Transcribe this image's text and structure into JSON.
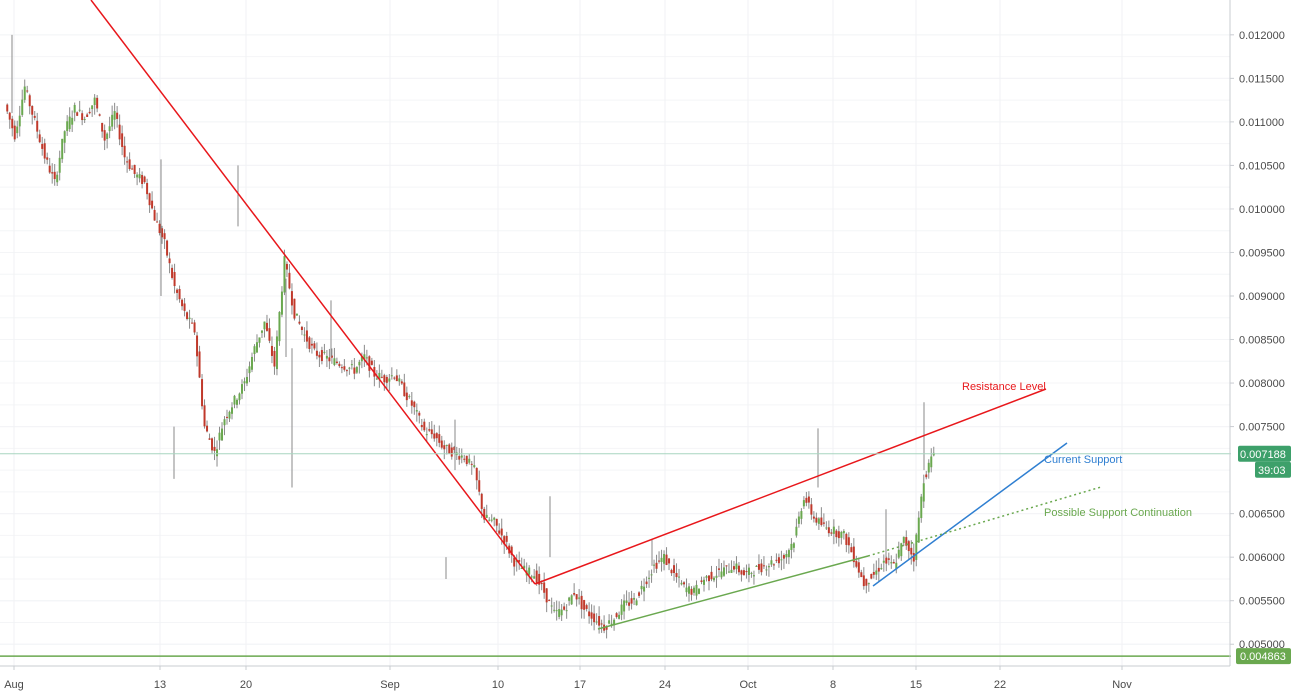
{
  "chart_data": {
    "type": "candlestick",
    "title": "",
    "xlabel": "",
    "ylabel": "",
    "x_ticks": [
      "Aug",
      "13",
      "20",
      "Sep",
      "10",
      "17",
      "24",
      "Oct",
      "8",
      "15",
      "22",
      "Nov"
    ],
    "y_ticks": [
      "0.012000",
      "0.011500",
      "0.011000",
      "0.010500",
      "0.010000",
      "0.009500",
      "0.009000",
      "0.008500",
      "0.008000",
      "0.007500",
      "0.006500",
      "0.006000",
      "0.005500",
      "0.005000"
    ],
    "ylim": [
      0.00475,
      0.0124
    ],
    "grid": true,
    "current_price": "0.007188",
    "countdown": "39:03",
    "horizontal_level_label": "0.004863",
    "horizontal_level": 0.004863,
    "series": [
      {
        "values": [
          [
            0,
            0.0112
          ],
          [
            1,
            0.01085
          ],
          [
            2,
            0.0114
          ],
          [
            3,
            0.011
          ],
          [
            4,
            0.0106
          ],
          [
            5,
            0.0103
          ],
          [
            6,
            0.0109
          ],
          [
            7,
            0.01115
          ],
          [
            8,
            0.01105
          ],
          [
            9,
            0.01125
          ],
          [
            10,
            0.0108
          ],
          [
            11,
            0.0111
          ],
          [
            12,
            0.0106
          ],
          [
            13,
            0.0104
          ],
          [
            14,
            0.0103
          ],
          [
            15,
            0.0099
          ],
          [
            16,
            0.0096
          ],
          [
            17,
            0.0091
          ],
          [
            18,
            0.0088
          ],
          [
            19,
            0.0086
          ],
          [
            20,
            0.0075
          ],
          [
            21,
            0.0072
          ],
          [
            22,
            0.0076
          ],
          [
            23,
            0.0078
          ],
          [
            24,
            0.008
          ],
          [
            25,
            0.0084
          ],
          [
            26,
            0.0087
          ],
          [
            27,
            0.0082
          ],
          [
            28,
            0.0094
          ],
          [
            29,
            0.0088
          ],
          [
            30,
            0.00855
          ],
          [
            31,
            0.00835
          ],
          [
            32,
            0.0083
          ],
          [
            33,
            0.00825
          ],
          [
            34,
            0.0082
          ],
          [
            35,
            0.00815
          ],
          [
            36,
            0.0083
          ],
          [
            37,
            0.0081
          ],
          [
            38,
            0.00805
          ],
          [
            39,
            0.0081
          ],
          [
            40,
            0.0079
          ],
          [
            41,
            0.0077
          ],
          [
            42,
            0.00745
          ],
          [
            43,
            0.0074
          ],
          [
            44,
            0.00725
          ],
          [
            45,
            0.0072
          ],
          [
            46,
            0.00715
          ],
          [
            47,
            0.007
          ],
          [
            48,
            0.00645
          ],
          [
            49,
            0.0064
          ],
          [
            50,
            0.0062
          ],
          [
            51,
            0.00595
          ],
          [
            52,
            0.00585
          ],
          [
            53,
            0.0058
          ],
          [
            54,
            0.0056
          ],
          [
            55,
            0.00535
          ],
          [
            56,
            0.0054
          ],
          [
            57,
            0.0056
          ],
          [
            58,
            0.0054
          ],
          [
            59,
            0.0053
          ],
          [
            60,
            0.0052
          ],
          [
            61,
            0.0053
          ],
          [
            62,
            0.00545
          ],
          [
            63,
            0.0055
          ],
          [
            64,
            0.0057
          ],
          [
            65,
            0.0059
          ],
          [
            66,
            0.006
          ],
          [
            67,
            0.0058
          ],
          [
            68,
            0.00565
          ],
          [
            69,
            0.0056
          ],
          [
            70,
            0.00575
          ],
          [
            71,
            0.0058
          ],
          [
            72,
            0.00585
          ],
          [
            73,
            0.0059
          ],
          [
            74,
            0.0058
          ],
          [
            75,
            0.00585
          ],
          [
            76,
            0.0059
          ],
          [
            77,
            0.00595
          ],
          [
            78,
            0.006
          ],
          [
            79,
            0.0062
          ],
          [
            80,
            0.0067
          ],
          [
            81,
            0.00645
          ],
          [
            82,
            0.00635
          ],
          [
            83,
            0.0063
          ],
          [
            84,
            0.00625
          ],
          [
            85,
            0.006
          ],
          [
            86,
            0.0057
          ],
          [
            87,
            0.0058
          ],
          [
            88,
            0.00595
          ],
          [
            89,
            0.0059
          ],
          [
            90,
            0.0062
          ],
          [
            91,
            0.006
          ],
          [
            92,
            0.0069
          ],
          [
            93,
            0.0072
          ]
        ]
      }
    ],
    "annotations": [
      {
        "text": "Resistance Level",
        "color": "#e8171b"
      },
      {
        "text": "Current Support",
        "color": "#2f7fd1"
      },
      {
        "text": "Possible Support Continuation",
        "color": "#6aa84f"
      }
    ],
    "trendlines": [
      {
        "color": "#e8171b",
        "style": "solid",
        "points": [
          [
            0.0,
            0.0125
          ],
          [
            53.0,
            0.0056
          ]
        ]
      },
      {
        "color": "#e8171b",
        "style": "solid",
        "points": [
          [
            53.0,
            0.0056
          ],
          [
            103.0,
            0.00785
          ]
        ]
      },
      {
        "color": "#6aa84f",
        "style": "solid",
        "points": [
          [
            59.0,
            0.0051
          ],
          [
            85.0,
            0.00595
          ]
        ]
      },
      {
        "color": "#2f7fd1",
        "style": "solid",
        "points": [
          [
            86.0,
            0.0056
          ],
          [
            104.8,
            0.00725
          ]
        ]
      },
      {
        "color": "#6aa84f",
        "style": "dotted",
        "points": [
          [
            85.0,
            0.00595
          ],
          [
            108.5,
            0.00675
          ]
        ]
      }
    ],
    "colors": {
      "up": "#6aa84f",
      "down": "#c0392b",
      "wick": "#8a8a8a",
      "price_tag": "#3da06a",
      "level_line": "#6aa84f"
    }
  }
}
